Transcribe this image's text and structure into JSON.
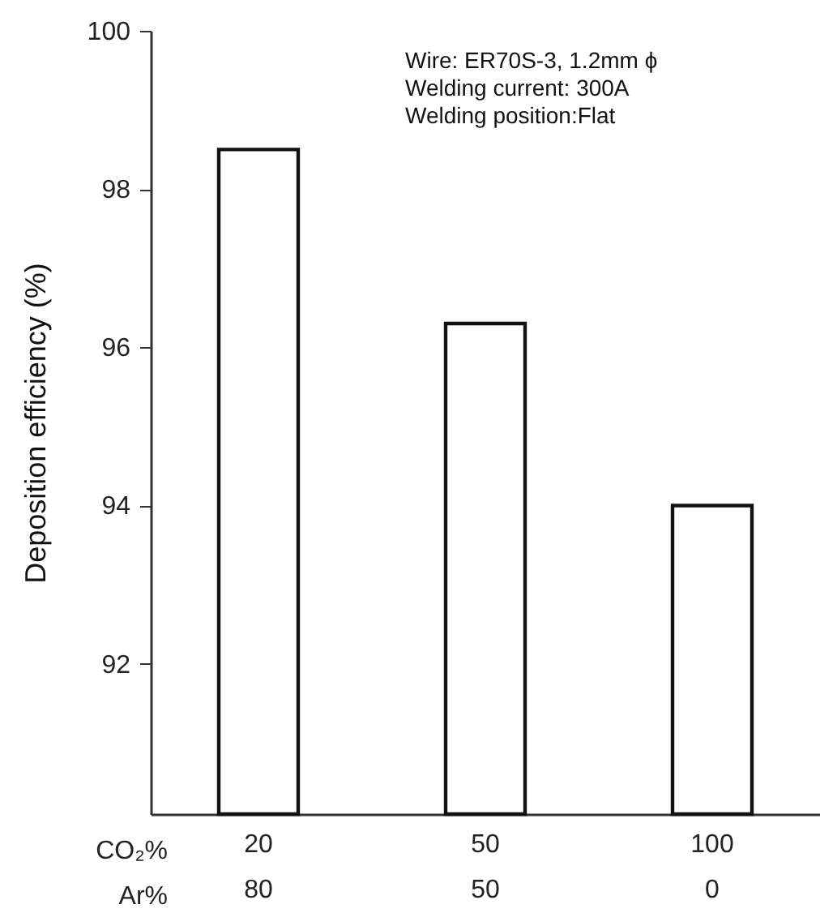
{
  "chart_data": {
    "type": "bar",
    "ylabel": "Deposition efficiency (%)",
    "xlabel": "CO₂%\nAr%",
    "categories": [
      "20\n80",
      "50\n50",
      "100\n0"
    ],
    "values": [
      98.5,
      96.3,
      94.0
    ],
    "color": "#ffffff",
    "ylim": [
      90.1,
      100
    ],
    "yticks": [
      92,
      94,
      96,
      98,
      100
    ],
    "annotations": [
      "Wire: ER70S-3, 1.2mm ϕ",
      "Welding current: 300A",
      "Welding position:Flat"
    ]
  }
}
